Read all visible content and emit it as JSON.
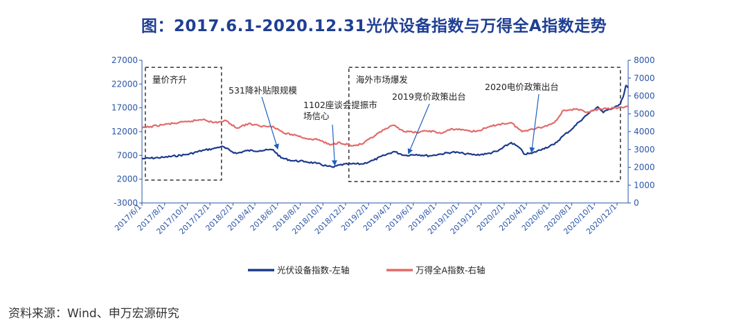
{
  "title": "图：2017.6.1-2020.12.31光伏设备指数与万得全A指数走势",
  "source": "资料来源：Wind、申万宏源研究",
  "colors": {
    "pv": "#1c3a8c",
    "wind": "#e36a6a",
    "axis": "#2a55a6",
    "title": "#1f3f94"
  },
  "chart_data": {
    "type": "line",
    "left_axis": {
      "min": -3000,
      "max": 27000,
      "ticks": [
        -3000,
        2000,
        7000,
        12000,
        17000,
        22000,
        27000
      ]
    },
    "right_axis": {
      "min": 0,
      "max": 8000,
      "ticks": [
        0,
        1000,
        2000,
        3000,
        4000,
        5000,
        6000,
        7000,
        8000
      ]
    },
    "x_range": [
      "2017-06-01",
      "2020-12-31"
    ],
    "x_ticks": [
      "2017/6/1",
      "2017/8/1",
      "2017/10/1",
      "2017/12/1",
      "2018/2/1",
      "2018/4/1",
      "2018/6/1",
      "2018/8/1",
      "2018/10/1",
      "2018/12/1",
      "2019/2/1",
      "2019/4/1",
      "2019/6/1",
      "2019/8/1",
      "2019/10/1",
      "2019/12/1",
      "2020/2/1",
      "2020/4/1",
      "2020/6/1",
      "2020/8/1",
      "2020/10/1",
      "2020/12/1"
    ],
    "series": [
      {
        "name": "光伏设备指数-左轴",
        "axis": "left",
        "points": [
          [
            "2017-06-01",
            6300
          ],
          [
            "2017-08-01",
            6600
          ],
          [
            "2017-10-01",
            7200
          ],
          [
            "2017-11-15",
            8100
          ],
          [
            "2017-12-10",
            8400
          ],
          [
            "2018-01-01",
            8900
          ],
          [
            "2018-02-10",
            7400
          ],
          [
            "2018-03-10",
            8000
          ],
          [
            "2018-04-15",
            8000
          ],
          [
            "2018-05-20",
            8200
          ],
          [
            "2018-06-10",
            6500
          ],
          [
            "2018-07-10",
            5900
          ],
          [
            "2018-08-15",
            5700
          ],
          [
            "2018-09-15",
            5300
          ],
          [
            "2018-10-15",
            4700
          ],
          [
            "2018-10-30",
            4500
          ],
          [
            "2018-11-15",
            5000
          ],
          [
            "2018-12-15",
            5200
          ],
          [
            "2019-01-15",
            5200
          ],
          [
            "2019-02-15",
            6000
          ],
          [
            "2019-03-15",
            7000
          ],
          [
            "2019-04-10",
            7800
          ],
          [
            "2019-05-10",
            7000
          ],
          [
            "2019-06-10",
            7200
          ],
          [
            "2019-07-15",
            6900
          ],
          [
            "2019-08-15",
            7300
          ],
          [
            "2019-09-15",
            7700
          ],
          [
            "2019-10-15",
            7400
          ],
          [
            "2019-11-15",
            7100
          ],
          [
            "2019-12-15",
            7300
          ],
          [
            "2020-01-15",
            7900
          ],
          [
            "2020-02-20",
            9700
          ],
          [
            "2020-03-15",
            8500
          ],
          [
            "2020-03-25",
            7300
          ],
          [
            "2020-04-15",
            7400
          ],
          [
            "2020-05-15",
            8400
          ],
          [
            "2020-06-15",
            9300
          ],
          [
            "2020-07-10",
            11200
          ],
          [
            "2020-08-01",
            12500
          ],
          [
            "2020-08-20",
            14000
          ],
          [
            "2020-09-15",
            15800
          ],
          [
            "2020-10-10",
            17200
          ],
          [
            "2020-10-25",
            16000
          ],
          [
            "2020-11-10",
            16700
          ],
          [
            "2020-11-25",
            17200
          ],
          [
            "2020-12-10",
            17800
          ],
          [
            "2020-12-20",
            20000
          ],
          [
            "2020-12-25",
            21700
          ],
          [
            "2020-12-31",
            21200
          ]
        ]
      },
      {
        "name": "万得全A指数-右轴",
        "axis": "right",
        "points": [
          [
            "2017-06-01",
            4200
          ],
          [
            "2017-08-01",
            4400
          ],
          [
            "2017-10-01",
            4550
          ],
          [
            "2017-11-15",
            4700
          ],
          [
            "2017-12-10",
            4500
          ],
          [
            "2018-01-15",
            4600
          ],
          [
            "2018-02-10",
            4200
          ],
          [
            "2018-03-15",
            4450
          ],
          [
            "2018-04-15",
            4300
          ],
          [
            "2018-05-20",
            4300
          ],
          [
            "2018-06-20",
            3900
          ],
          [
            "2018-07-20",
            3800
          ],
          [
            "2018-08-20",
            3600
          ],
          [
            "2018-09-20",
            3550
          ],
          [
            "2018-10-20",
            3250
          ],
          [
            "2018-11-15",
            3400
          ],
          [
            "2018-12-20",
            3200
          ],
          [
            "2019-01-15",
            3300
          ],
          [
            "2019-02-20",
            3800
          ],
          [
            "2019-03-15",
            4100
          ],
          [
            "2019-04-10",
            4350
          ],
          [
            "2019-05-10",
            4000
          ],
          [
            "2019-06-10",
            3950
          ],
          [
            "2019-07-15",
            4050
          ],
          [
            "2019-08-15",
            3900
          ],
          [
            "2019-09-15",
            4150
          ],
          [
            "2019-10-15",
            4100
          ],
          [
            "2019-11-15",
            4000
          ],
          [
            "2019-12-15",
            4200
          ],
          [
            "2020-01-15",
            4400
          ],
          [
            "2020-02-20",
            4500
          ],
          [
            "2020-03-20",
            4000
          ],
          [
            "2020-04-15",
            4150
          ],
          [
            "2020-05-15",
            4250
          ],
          [
            "2020-06-15",
            4500
          ],
          [
            "2020-07-10",
            5200
          ],
          [
            "2020-08-10",
            5250
          ],
          [
            "2020-09-15",
            5100
          ],
          [
            "2020-10-15",
            5250
          ],
          [
            "2020-11-15",
            5300
          ],
          [
            "2020-12-15",
            5350
          ],
          [
            "2020-12-31",
            5450
          ]
        ]
      }
    ],
    "annotations": [
      {
        "name": "box-1",
        "text": "量价齐升",
        "x0": "2017-06-10",
        "x1": "2018-01-01",
        "y0": 1800,
        "y1": 25500
      },
      {
        "name": "box-2",
        "text": "海外市场爆发",
        "x0": "2018-12-10",
        "x1": "2020-12-10",
        "y0": 1500,
        "y1": 25500
      },
      {
        "name": "arrow-531",
        "text": "531降补贴限规模",
        "tip": [
          "2018-06-01",
          8200
        ]
      },
      {
        "name": "arrow-1102",
        "lines": [
          "1102座谈会提振市",
          "场信心"
        ],
        "tip": [
          "2018-11-02",
          4800
        ]
      },
      {
        "name": "arrow-2019",
        "text": "2019竞价政策出台",
        "tip": [
          "2019-05-20",
          7200
        ]
      },
      {
        "name": "arrow-2020",
        "text": "2020电价政策出台",
        "tip": [
          "2020-04-15",
          7500
        ]
      }
    ]
  }
}
